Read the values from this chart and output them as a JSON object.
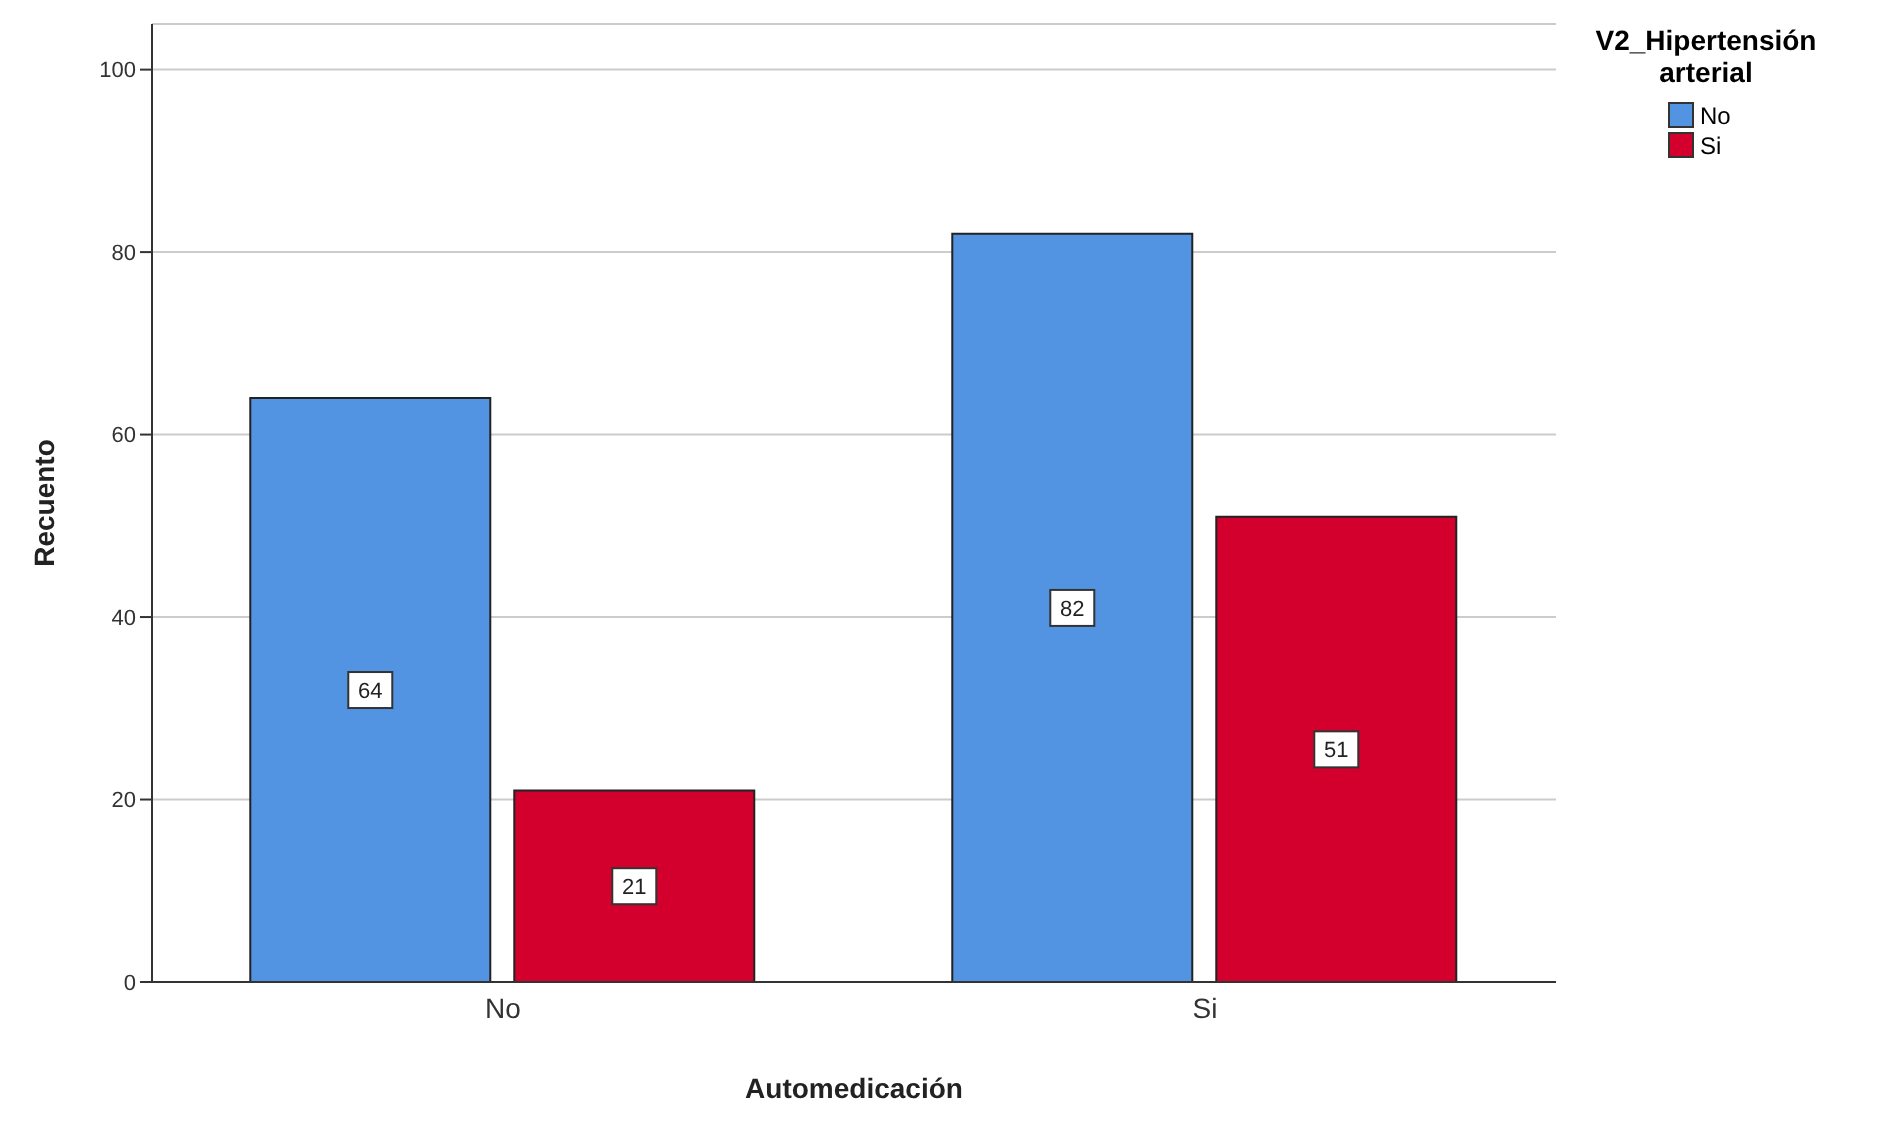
{
  "chart_data": {
    "type": "bar",
    "xlabel": "Automedicación",
    "ylabel": "Recuento",
    "legend_title": "V2_Hipertensión arterial",
    "categories": [
      "No",
      "Si"
    ],
    "series": [
      {
        "name": "No",
        "color": "#5294e2",
        "values": [
          64,
          82
        ]
      },
      {
        "name": "Si",
        "color": "#d3002e",
        "values": [
          21,
          51
        ]
      }
    ],
    "ylim": [
      0,
      105
    ],
    "yticks": [
      0,
      20,
      40,
      60,
      80,
      100
    ],
    "grid": "y",
    "legend": "top right",
    "data_labels": true
  }
}
